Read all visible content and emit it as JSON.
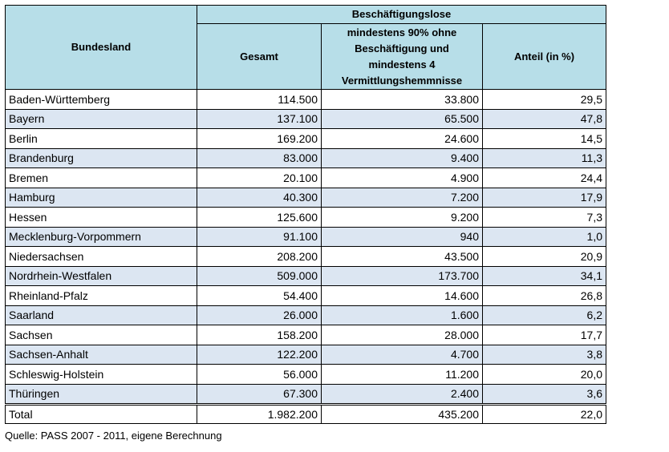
{
  "table": {
    "header": {
      "bundesland": "Bundesland",
      "group": "Beschäftigungslose",
      "gesamt": "Gesamt",
      "subgroup": "mindestens 90% ohne Beschäftigung und mindestens 4 Vermittlungshemmnisse",
      "anteil": "Anteil (in %)"
    },
    "rows": [
      [
        "Baden-Württemberg",
        "114.500",
        "33.800",
        "29,5"
      ],
      [
        "Bayern",
        "137.100",
        "65.500",
        "47,8"
      ],
      [
        "Berlin",
        "169.200",
        "24.600",
        "14,5"
      ],
      [
        "Brandenburg",
        "83.000",
        "9.400",
        "11,3"
      ],
      [
        "Bremen",
        "20.100",
        "4.900",
        "24,4"
      ],
      [
        "Hamburg",
        "40.300",
        "7.200",
        "17,9"
      ],
      [
        "Hessen",
        "125.600",
        "9.200",
        "7,3"
      ],
      [
        "Mecklenburg-Vorpommern",
        "91.100",
        "940",
        "1,0"
      ],
      [
        "Niedersachsen",
        "208.200",
        "43.500",
        "20,9"
      ],
      [
        "Nordrhein-Westfalen",
        "509.000",
        "173.700",
        "34,1"
      ],
      [
        "Rheinland-Pfalz",
        "54.400",
        "14.600",
        "26,8"
      ],
      [
        "Saarland",
        "26.000",
        "1.600",
        "6,2"
      ],
      [
        "Sachsen",
        "158.200",
        "28.000",
        "17,7"
      ],
      [
        "Sachsen-Anhalt",
        "122.200",
        "4.700",
        "3,8"
      ],
      [
        "Schleswig-Holstein",
        "56.000",
        "11.200",
        "20,0"
      ],
      [
        "Thüringen",
        "67.300",
        "2.400",
        "3,6"
      ]
    ],
    "total": [
      "Total",
      "1.982.200",
      "435.200",
      "22,0"
    ],
    "source": "Quelle: PASS 2007 - 2011, eigene Berechnung"
  }
}
